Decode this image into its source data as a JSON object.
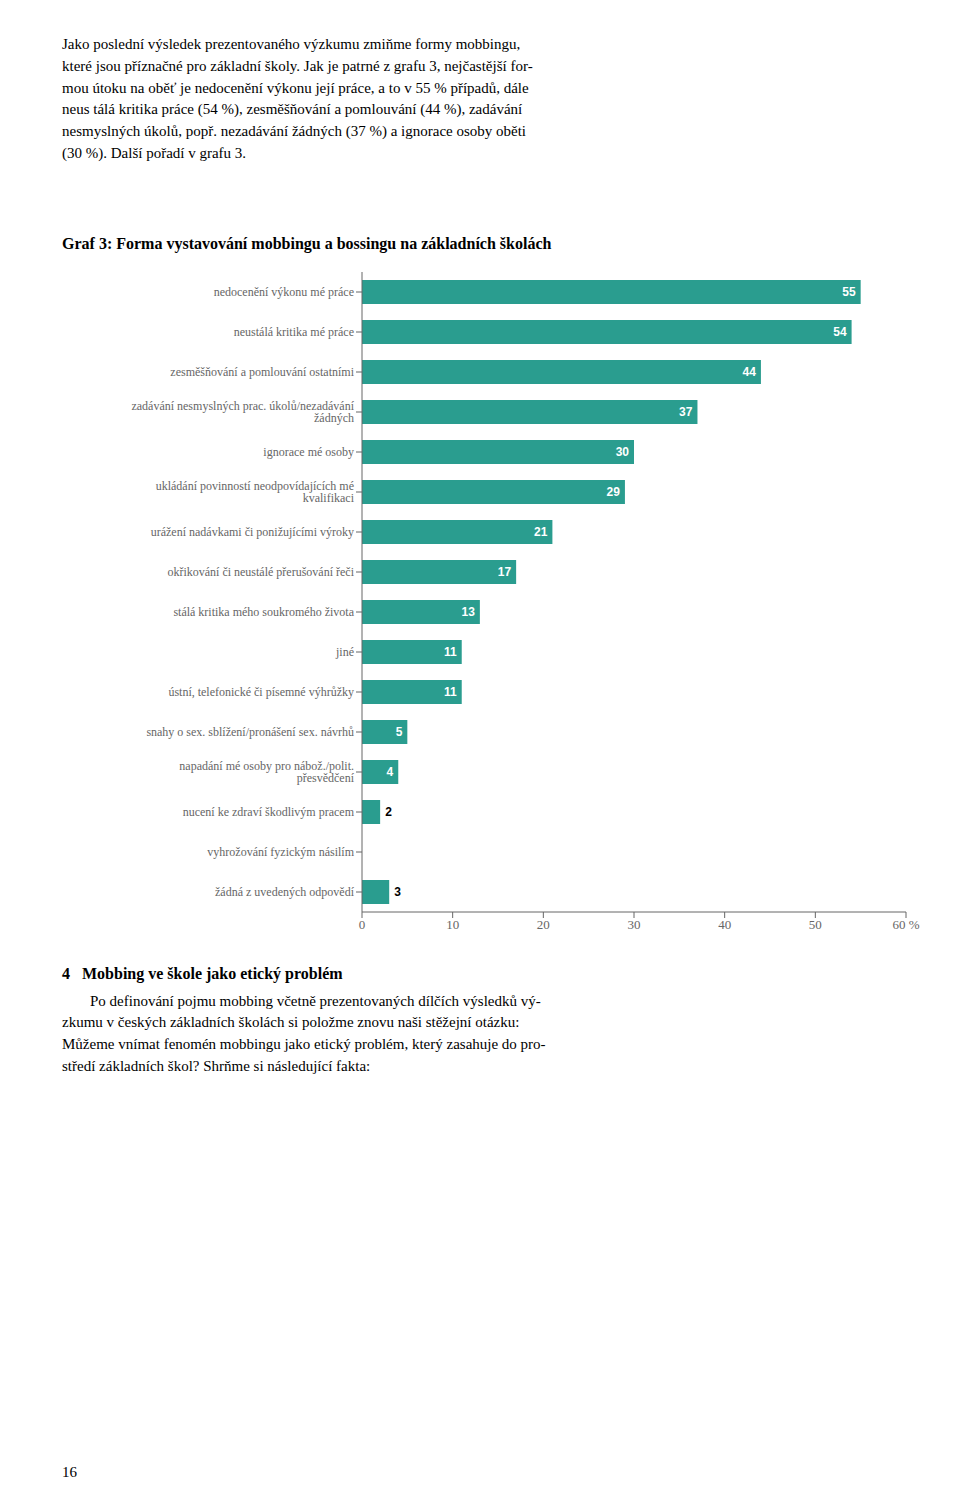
{
  "chart_data": {
    "type": "bar",
    "title": "Graf 3: Forma vystavování mobbingu a bossingu na základních školách",
    "orientation": "horizontal",
    "categories": [
      "nedocenění výkonu mé práce",
      "neustálá kritika mé práce",
      "zesměšňování a pomlouvání ostatními",
      "zadávání nesmyslných prac. úkolů/nezadávání žádných",
      "ignorace mé osoby",
      "ukládání povinností neodpovídajících mé kvalifikaci",
      "urážení nadávkami či ponižujícími výroky",
      "okřikování či neustálé přerušování řeči",
      "stálá kritika mého soukromého života",
      "jiné",
      "ústní, telefonické či písemné výhrůžky",
      "snahy o sex. sblížení/pronášení sex. návrhů",
      "napadání mé osoby pro nábož./polit. přesvědčení",
      "nucení ke zdraví škodlivým pracem",
      "vyhrožování fyzickým násilím",
      "žádná z uvedených odpovědí"
    ],
    "values": [
      55,
      54,
      44,
      37,
      30,
      29,
      21,
      17,
      13,
      11,
      11,
      5,
      4,
      2,
      0,
      3
    ],
    "color": "#2a9d8f",
    "xlim": [
      0,
      60
    ],
    "xticks": [
      0,
      10,
      20,
      30,
      40,
      50,
      {
        "value": 60,
        "label": "60 %"
      }
    ],
    "grid": false,
    "data_labels": true,
    "annotations": [
      "Jako poslední výsledek prezentovaného výzkumu zmiňme formy mobbingu,\nkteré jsou příznačné pro základní školy. Jak je patrné z grafu 3, nejčastější for-\nmou útoku na oběť je nedocenění výkonu její práce, a to v 55 % případů, dále\nneus tálá kritika práce (54 %), zesměšňování a pomlouvání (44 %), zadávání\nnesmyslných úkolů, popř. nezadávání žádných (37 %) a ignorace osoby oběti\n(30 %). Další pořadí v grafu 3.",
      "4",
      "Mobbing ve škole jako etický problém",
      "Po definování pojmu mobbing včetně prezentovaných dílčích výsledků vý-\nzkumu v českých základních školách si položme znovu naši stěžejní otázku:\nMůžeme vnímat fenomén mobbingu jako etický problém, který zasahuje do pro-\nstředí základních škol? Shrňme si následující fakta:",
      "16"
    ]
  }
}
